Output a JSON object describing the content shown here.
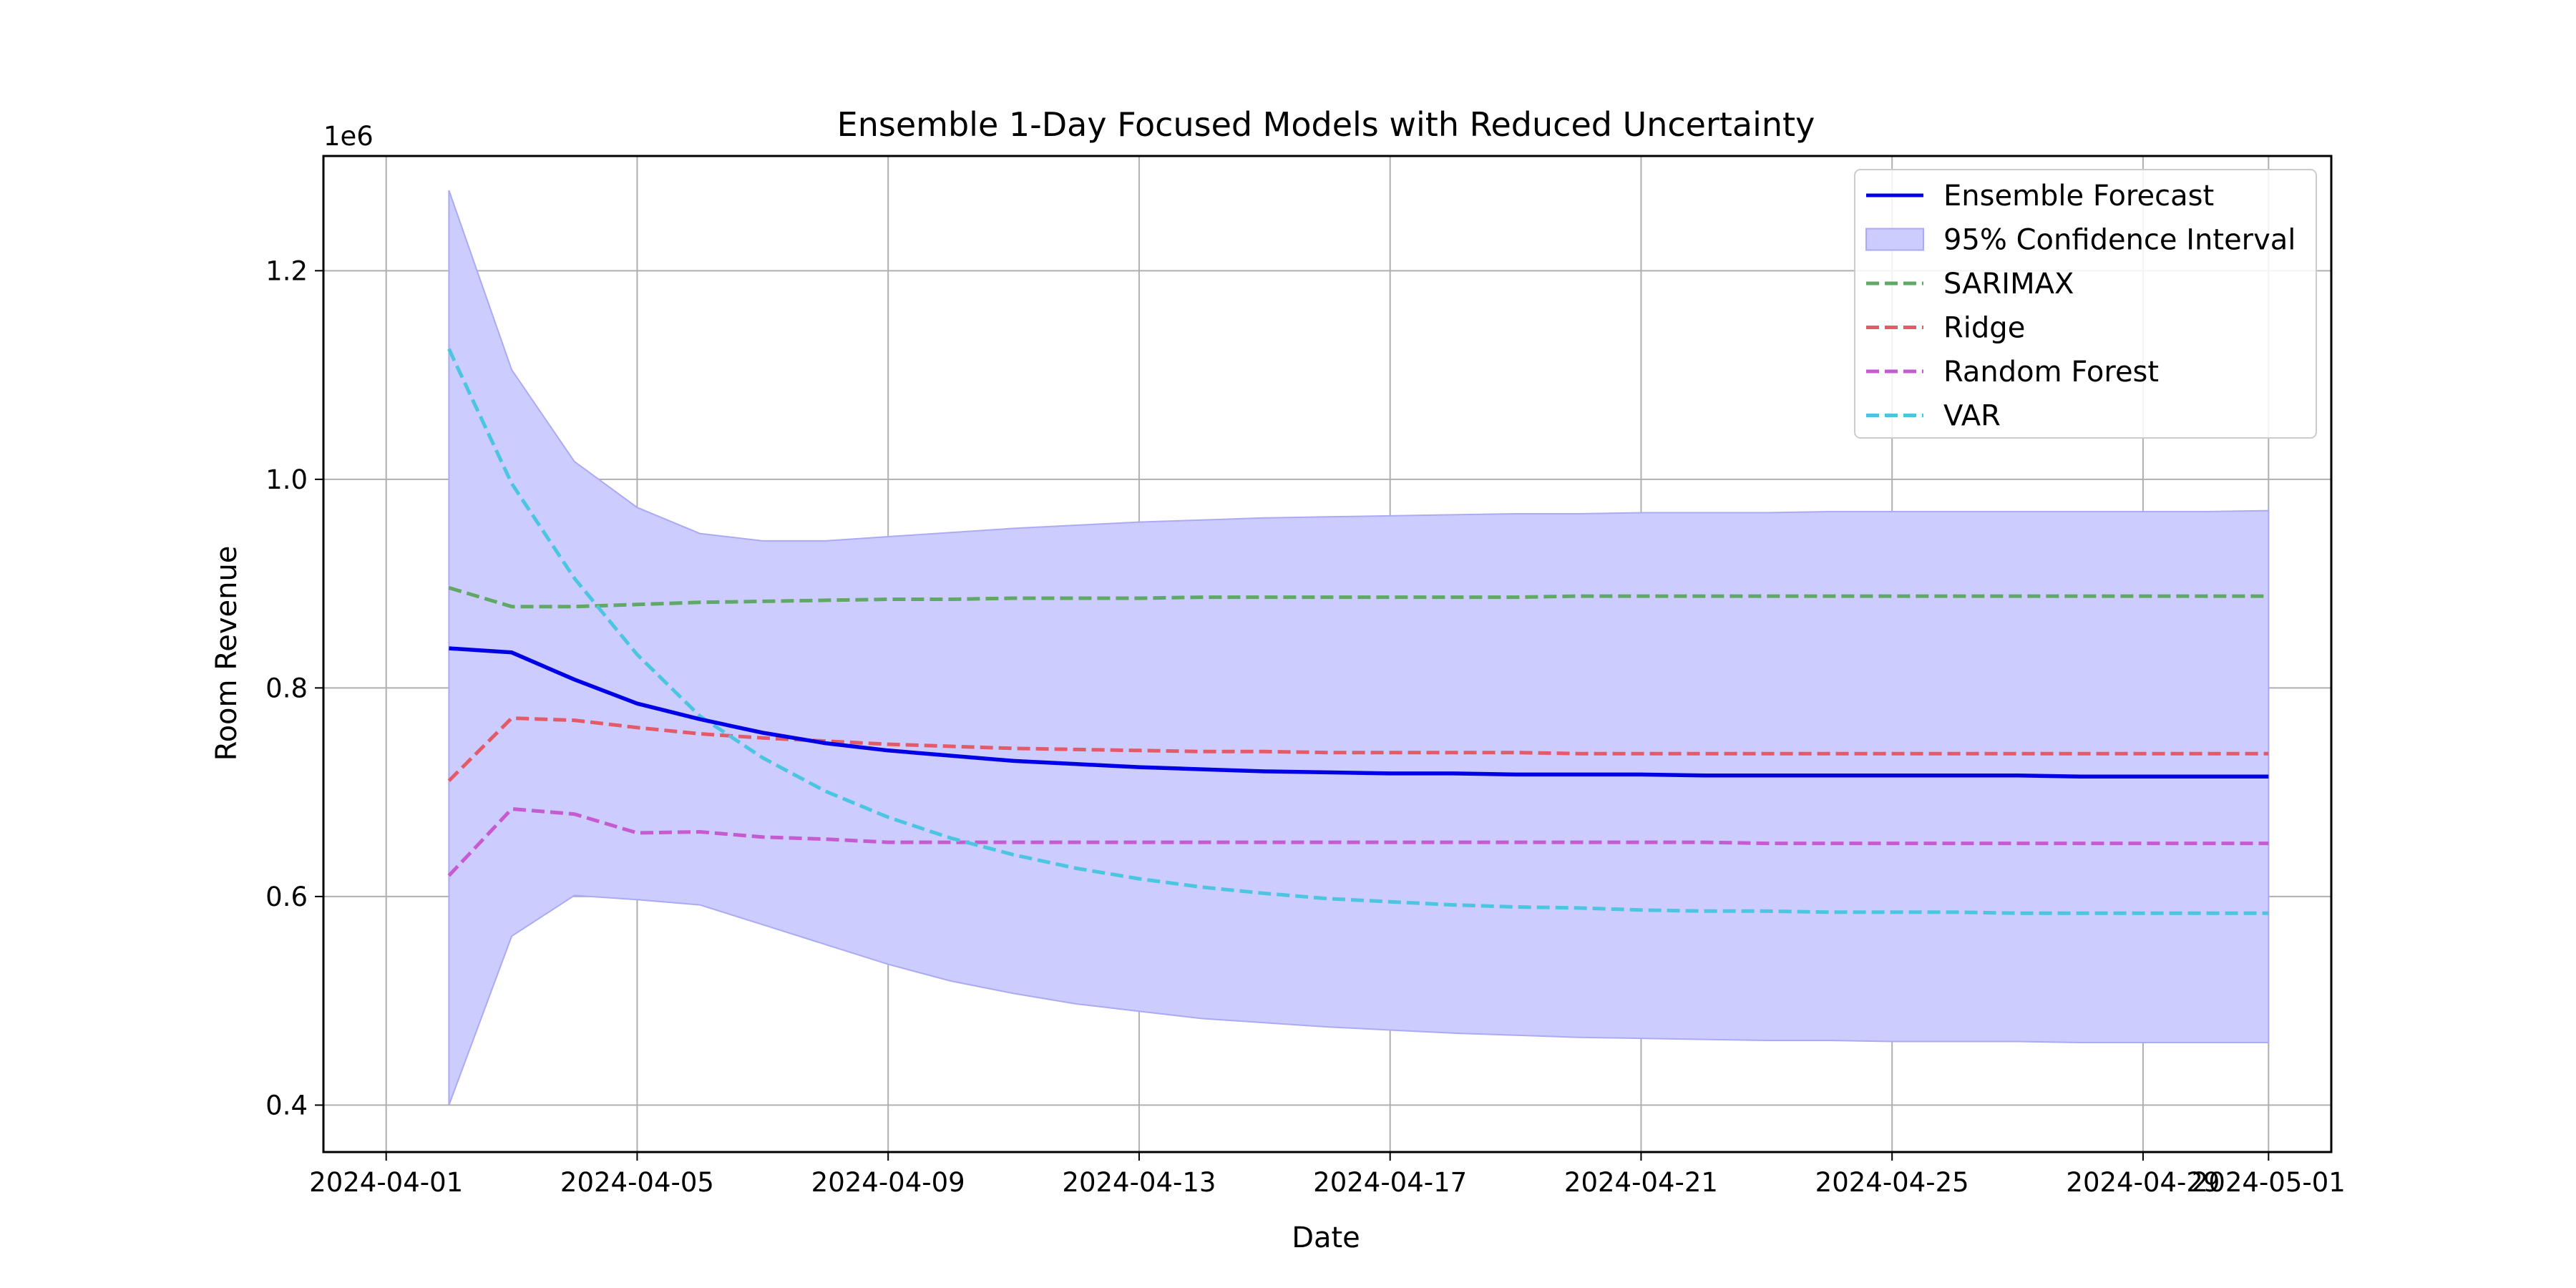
{
  "chart_data": {
    "type": "line",
    "title": "Ensemble 1-Day Focused Models with Reduced Uncertainty",
    "xlabel": "Date",
    "ylabel": "Room Revenue",
    "y_offset_label": "1e6",
    "xlim": [
      "2024-03-31",
      "2024-05-02"
    ],
    "ylim": [
      0.355,
      1.31
    ],
    "y_ticks": [
      0.4,
      0.6,
      0.8,
      1.0,
      1.2
    ],
    "y_tick_labels": [
      "0.4",
      "0.6",
      "0.8",
      "1.0",
      "1.2"
    ],
    "x_ticks": [
      "2024-04-01",
      "2024-04-05",
      "2024-04-09",
      "2024-04-13",
      "2024-04-17",
      "2024-04-21",
      "2024-04-25",
      "2024-04-29",
      "2024-05-01"
    ],
    "grid": true,
    "legend_position": "top-right",
    "x": [
      "2024-04-02",
      "2024-04-03",
      "2024-04-04",
      "2024-04-05",
      "2024-04-06",
      "2024-04-07",
      "2024-04-08",
      "2024-04-09",
      "2024-04-10",
      "2024-04-11",
      "2024-04-12",
      "2024-04-13",
      "2024-04-14",
      "2024-04-15",
      "2024-04-16",
      "2024-04-17",
      "2024-04-18",
      "2024-04-19",
      "2024-04-20",
      "2024-04-21",
      "2024-04-22",
      "2024-04-23",
      "2024-04-24",
      "2024-04-25",
      "2024-04-26",
      "2024-04-27",
      "2024-04-28",
      "2024-04-29",
      "2024-04-30",
      "2024-05-01"
    ],
    "confidence_interval": {
      "name": "95% Confidence Interval",
      "color": "#ccccff",
      "edge_color": "#aaaaf5",
      "upper": [
        1.277,
        1.105,
        1.017,
        0.973,
        0.948,
        0.941,
        0.941,
        0.945,
        0.949,
        0.953,
        0.956,
        0.959,
        0.961,
        0.963,
        0.964,
        0.965,
        0.966,
        0.967,
        0.967,
        0.968,
        0.968,
        0.968,
        0.969,
        0.969,
        0.969,
        0.969,
        0.969,
        0.969,
        0.969,
        0.97
      ],
      "lower": [
        0.4,
        0.562,
        0.601,
        0.597,
        0.592,
        0.573,
        0.554,
        0.535,
        0.519,
        0.507,
        0.497,
        0.49,
        0.483,
        0.479,
        0.475,
        0.472,
        0.469,
        0.467,
        0.465,
        0.464,
        0.463,
        0.462,
        0.462,
        0.461,
        0.461,
        0.461,
        0.46,
        0.46,
        0.46,
        0.46
      ]
    },
    "series": [
      {
        "name": "Ensemble Forecast",
        "color": "#0000e6",
        "dashed": false,
        "values": [
          0.838,
          0.834,
          0.808,
          0.785,
          0.77,
          0.757,
          0.747,
          0.74,
          0.735,
          0.73,
          0.727,
          0.724,
          0.722,
          0.72,
          0.719,
          0.718,
          0.718,
          0.717,
          0.717,
          0.717,
          0.716,
          0.716,
          0.716,
          0.716,
          0.716,
          0.716,
          0.715,
          0.715,
          0.715,
          0.715
        ]
      },
      {
        "name": "SARIMAX",
        "color": "#5fa865",
        "dashed": true,
        "values": [
          0.896,
          0.878,
          0.878,
          0.88,
          0.882,
          0.883,
          0.884,
          0.885,
          0.885,
          0.886,
          0.886,
          0.886,
          0.887,
          0.887,
          0.887,
          0.887,
          0.887,
          0.887,
          0.888,
          0.888,
          0.888,
          0.888,
          0.888,
          0.888,
          0.888,
          0.888,
          0.888,
          0.888,
          0.888,
          0.888
        ]
      },
      {
        "name": "Ridge",
        "color": "#e45a68",
        "dashed": true,
        "values": [
          0.711,
          0.771,
          0.769,
          0.762,
          0.756,
          0.752,
          0.749,
          0.746,
          0.744,
          0.742,
          0.741,
          0.74,
          0.739,
          0.739,
          0.738,
          0.738,
          0.738,
          0.738,
          0.737,
          0.737,
          0.737,
          0.737,
          0.737,
          0.737,
          0.737,
          0.737,
          0.737,
          0.737,
          0.737,
          0.737
        ]
      },
      {
        "name": "Random Forest",
        "color": "#c65ad0",
        "dashed": true,
        "values": [
          0.62,
          0.684,
          0.679,
          0.661,
          0.662,
          0.657,
          0.655,
          0.652,
          0.652,
          0.652,
          0.652,
          0.652,
          0.652,
          0.652,
          0.652,
          0.652,
          0.652,
          0.652,
          0.652,
          0.652,
          0.652,
          0.651,
          0.651,
          0.651,
          0.651,
          0.651,
          0.651,
          0.651,
          0.651,
          0.651
        ]
      },
      {
        "name": "VAR",
        "color": "#4cc6e0",
        "dashed": true,
        "values": [
          1.125,
          0.996,
          0.905,
          0.832,
          0.773,
          0.733,
          0.701,
          0.676,
          0.656,
          0.64,
          0.627,
          0.617,
          0.609,
          0.603,
          0.598,
          0.595,
          0.592,
          0.59,
          0.589,
          0.587,
          0.586,
          0.586,
          0.585,
          0.585,
          0.585,
          0.584,
          0.584,
          0.584,
          0.584,
          0.584
        ]
      }
    ]
  }
}
